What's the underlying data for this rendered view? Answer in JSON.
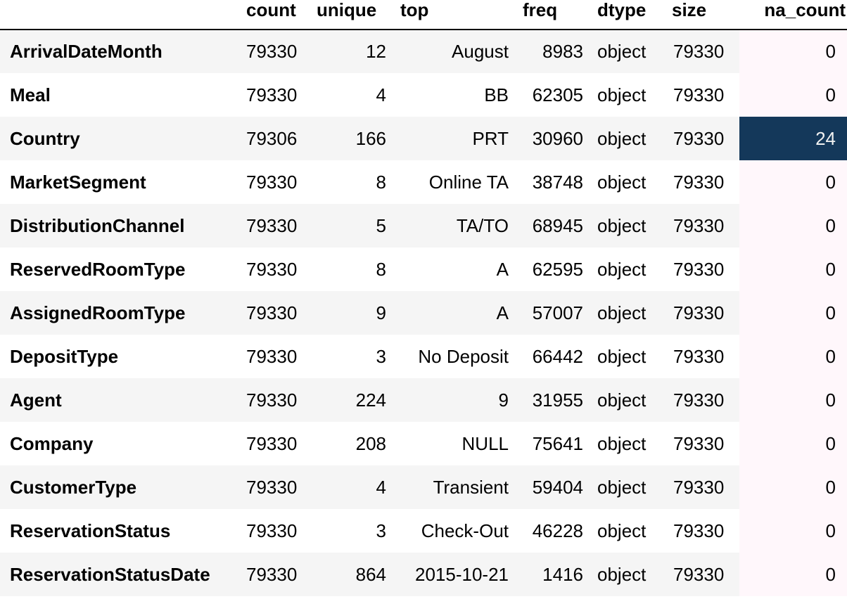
{
  "columns": [
    "",
    "count",
    "unique",
    "top",
    "freq",
    "dtype",
    "size",
    "na_count"
  ],
  "colors": {
    "na_low": "#fff7fb",
    "na_high": "#14385a",
    "stripe": "#f5f5f5"
  },
  "rows": [
    {
      "name": "ArrivalDateMonth",
      "count": "79330",
      "unique": "12",
      "top": "August",
      "freq": "8983",
      "dtype": "object",
      "size": "79330",
      "na_count": "0"
    },
    {
      "name": "Meal",
      "count": "79330",
      "unique": "4",
      "top": "BB",
      "freq": "62305",
      "dtype": "object",
      "size": "79330",
      "na_count": "0"
    },
    {
      "name": "Country",
      "count": "79306",
      "unique": "166",
      "top": "PRT",
      "freq": "30960",
      "dtype": "object",
      "size": "79330",
      "na_count": "24"
    },
    {
      "name": "MarketSegment",
      "count": "79330",
      "unique": "8",
      "top": "Online TA",
      "freq": "38748",
      "dtype": "object",
      "size": "79330",
      "na_count": "0"
    },
    {
      "name": "DistributionChannel",
      "count": "79330",
      "unique": "5",
      "top": "TA/TO",
      "freq": "68945",
      "dtype": "object",
      "size": "79330",
      "na_count": "0"
    },
    {
      "name": "ReservedRoomType",
      "count": "79330",
      "unique": "8",
      "top": "A",
      "freq": "62595",
      "dtype": "object",
      "size": "79330",
      "na_count": "0"
    },
    {
      "name": "AssignedRoomType",
      "count": "79330",
      "unique": "9",
      "top": "A",
      "freq": "57007",
      "dtype": "object",
      "size": "79330",
      "na_count": "0"
    },
    {
      "name": "DepositType",
      "count": "79330",
      "unique": "3",
      "top": "No Deposit",
      "freq": "66442",
      "dtype": "object",
      "size": "79330",
      "na_count": "0"
    },
    {
      "name": "Agent",
      "count": "79330",
      "unique": "224",
      "top": "9",
      "freq": "31955",
      "dtype": "object",
      "size": "79330",
      "na_count": "0"
    },
    {
      "name": "Company",
      "count": "79330",
      "unique": "208",
      "top": "NULL",
      "freq": "75641",
      "dtype": "object",
      "size": "79330",
      "na_count": "0"
    },
    {
      "name": "CustomerType",
      "count": "79330",
      "unique": "4",
      "top": "Transient",
      "freq": "59404",
      "dtype": "object",
      "size": "79330",
      "na_count": "0"
    },
    {
      "name": "ReservationStatus",
      "count": "79330",
      "unique": "3",
      "top": "Check-Out",
      "freq": "46228",
      "dtype": "object",
      "size": "79330",
      "na_count": "0"
    },
    {
      "name": "ReservationStatusDate",
      "count": "79330",
      "unique": "864",
      "top": "2015-10-21",
      "freq": "1416",
      "dtype": "object",
      "size": "79330",
      "na_count": "0"
    }
  ]
}
